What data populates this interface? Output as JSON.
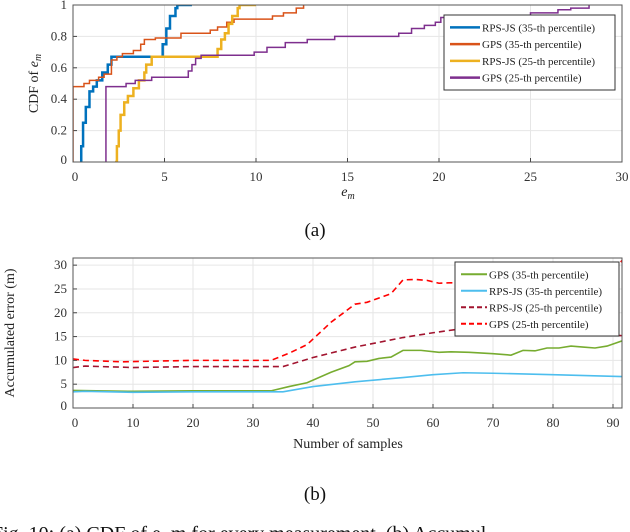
{
  "chart_data": [
    {
      "type": "line",
      "subtype": "step-cdf",
      "caption": "(a)",
      "xlabel": "e_m",
      "ylabel": "CDF of e_m",
      "xlim": [
        0,
        30
      ],
      "ylim": [
        0,
        1
      ],
      "xticks": [
        0,
        5,
        10,
        15,
        20,
        25,
        30
      ],
      "yticks": [
        0,
        0.2,
        0.4,
        0.6,
        0.8,
        1
      ],
      "ytick_labels": [
        "0",
        "0.2",
        "0.4",
        "0.6",
        "0.8",
        "1"
      ],
      "grid": true,
      "legend_position": "top-right",
      "series": [
        {
          "name": "RPS-JS (35-th percentile)",
          "color": "#0072BD",
          "width": 2.5,
          "points": [
            [
              0.4,
              0
            ],
            [
              0.45,
              0.1
            ],
            [
              0.55,
              0.25
            ],
            [
              0.7,
              0.35
            ],
            [
              0.9,
              0.45
            ],
            [
              1.1,
              0.48
            ],
            [
              1.3,
              0.52
            ],
            [
              1.6,
              0.57
            ],
            [
              1.9,
              0.62
            ],
            [
              2.1,
              0.67
            ],
            [
              4.65,
              0.67
            ],
            [
              4.9,
              0.75
            ],
            [
              5.1,
              0.85
            ],
            [
              5.3,
              0.93
            ],
            [
              5.6,
              0.98
            ],
            [
              5.7,
              1
            ],
            [
              6.5,
              1
            ]
          ]
        },
        {
          "name": "GPS (35-th percentile)",
          "color": "#D95319",
          "width": 1.5,
          "points": [
            [
              0,
              0
            ],
            [
              0,
              0.48
            ],
            [
              0.6,
              0.5
            ],
            [
              0.9,
              0.52
            ],
            [
              1.4,
              0.54
            ],
            [
              1.7,
              0.56
            ],
            [
              2.1,
              0.65
            ],
            [
              2.4,
              0.67
            ],
            [
              2.7,
              0.69
            ],
            [
              3.3,
              0.71
            ],
            [
              3.7,
              0.75
            ],
            [
              3.9,
              0.78
            ],
            [
              4.5,
              0.79
            ],
            [
              5.9,
              0.82
            ],
            [
              7.5,
              0.84
            ],
            [
              7.9,
              0.86
            ],
            [
              8.4,
              0.89
            ],
            [
              8.8,
              0.91
            ],
            [
              10.9,
              0.93
            ],
            [
              11.5,
              0.95
            ],
            [
              12.2,
              0.98
            ],
            [
              12.6,
              1
            ]
          ]
        },
        {
          "name": "RPS-JS (25-th percentile)",
          "color": "#EDB120",
          "width": 2.5,
          "points": [
            [
              2.3,
              0
            ],
            [
              2.4,
              0.1
            ],
            [
              2.5,
              0.2
            ],
            [
              2.6,
              0.3
            ],
            [
              2.8,
              0.38
            ],
            [
              3.0,
              0.42
            ],
            [
              3.3,
              0.47
            ],
            [
              3.6,
              0.52
            ],
            [
              3.9,
              0.57
            ],
            [
              4.0,
              0.62
            ],
            [
              4.3,
              0.67
            ],
            [
              7.8,
              0.67
            ],
            [
              7.9,
              0.72
            ],
            [
              8.1,
              0.78
            ],
            [
              8.3,
              0.82
            ],
            [
              8.5,
              0.88
            ],
            [
              8.7,
              0.93
            ],
            [
              9.0,
              0.98
            ],
            [
              9.1,
              1
            ],
            [
              10,
              1
            ]
          ]
        },
        {
          "name": "GPS (25-th percentile)",
          "color": "#7E2F8E",
          "width": 1.5,
          "points": [
            [
              1.8,
              0
            ],
            [
              1.8,
              0.48
            ],
            [
              2.9,
              0.5
            ],
            [
              3.4,
              0.52
            ],
            [
              4.3,
              0.54
            ],
            [
              6.3,
              0.58
            ],
            [
              6.5,
              0.62
            ],
            [
              6.7,
              0.66
            ],
            [
              7.0,
              0.68
            ],
            [
              9.9,
              0.7
            ],
            [
              10.6,
              0.73
            ],
            [
              11.6,
              0.76
            ],
            [
              12.8,
              0.78
            ],
            [
              14.3,
              0.8
            ],
            [
              17.8,
              0.82
            ],
            [
              18.5,
              0.85
            ],
            [
              19.2,
              0.87
            ],
            [
              19.8,
              0.89
            ],
            [
              20.1,
              0.92
            ],
            [
              25,
              0.95
            ],
            [
              26.5,
              0.97
            ],
            [
              27.2,
              0.98
            ],
            [
              28.2,
              1
            ]
          ]
        }
      ]
    },
    {
      "type": "line",
      "caption": "(b)",
      "xlabel": "Number of samples",
      "ylabel": "Accumulated error (m)",
      "xlim": [
        0,
        91.5
      ],
      "ylim": [
        0,
        31.5
      ],
      "xticks": [
        0,
        10,
        20,
        30,
        40,
        50,
        60,
        70,
        80,
        90
      ],
      "yticks": [
        0,
        5,
        10,
        15,
        20,
        25,
        30
      ],
      "grid": true,
      "legend_position": "top-right",
      "series": [
        {
          "name": "GPS (35-th percentile)",
          "color": "#77AC30",
          "dash": "solid",
          "points": [
            [
              0,
              3.7
            ],
            [
              10,
              3.5
            ],
            [
              20,
              3.6
            ],
            [
              33,
              3.6
            ],
            [
              36,
              4.5
            ],
            [
              39,
              5.3
            ],
            [
              43,
              7.5
            ],
            [
              46,
              8.9
            ],
            [
              47,
              9.7
            ],
            [
              49,
              9.8
            ],
            [
              51,
              10.4
            ],
            [
              53,
              10.7
            ],
            [
              55,
              12.1
            ],
            [
              58,
              12.1
            ],
            [
              61,
              11.7
            ],
            [
              63,
              11.8
            ],
            [
              66,
              11.7
            ],
            [
              70,
              11.4
            ],
            [
              73,
              11.1
            ],
            [
              75,
              12.1
            ],
            [
              77,
              12.0
            ],
            [
              79,
              12.6
            ],
            [
              81,
              12.6
            ],
            [
              83,
              13.0
            ],
            [
              85,
              12.8
            ],
            [
              87,
              12.6
            ],
            [
              89,
              13.0
            ],
            [
              91.5,
              14.1
            ]
          ]
        },
        {
          "name": "RPS-JS (35-th percentile)",
          "color": "#4DBEEE",
          "dash": "solid",
          "points": [
            [
              0,
              3.4
            ],
            [
              2,
              3.5
            ],
            [
              10,
              3.3
            ],
            [
              20,
              3.4
            ],
            [
              35,
              3.4
            ],
            [
              40,
              4.5
            ],
            [
              47,
              5.5
            ],
            [
              55,
              6.4
            ],
            [
              60,
              7.0
            ],
            [
              65,
              7.4
            ],
            [
              70,
              7.3
            ],
            [
              80,
              7.0
            ],
            [
              91.5,
              6.6
            ]
          ]
        },
        {
          "name": "RPS-JS (25-th percentile)",
          "color": "#A2142F",
          "dash": "dashed",
          "points": [
            [
              0,
              8.5
            ],
            [
              2,
              8.8
            ],
            [
              10,
              8.5
            ],
            [
              20,
              8.7
            ],
            [
              35,
              8.7
            ],
            [
              40,
              10.6
            ],
            [
              47,
              12.8
            ],
            [
              55,
              14.8
            ],
            [
              60,
              15.8
            ],
            [
              65,
              16.7
            ],
            [
              70,
              16.6
            ],
            [
              80,
              16.0
            ],
            [
              91.5,
              15.2
            ]
          ]
        },
        {
          "name": "GPS (25-th percentile)",
          "color": "#FF0000",
          "dash": "dashed",
          "points": [
            [
              0,
              10.3
            ],
            [
              2,
              10.0
            ],
            [
              8,
              9.7
            ],
            [
              20,
              10.0
            ],
            [
              33,
              10.0
            ],
            [
              36,
              11.5
            ],
            [
              39,
              13.3
            ],
            [
              43,
              18
            ],
            [
              47,
              21.8
            ],
            [
              49,
              22.2
            ],
            [
              53,
              24
            ],
            [
              55,
              26.9
            ],
            [
              57,
              27.0
            ],
            [
              59,
              26.8
            ],
            [
              61,
              26.2
            ],
            [
              63,
              26.3
            ],
            [
              66,
              26.1
            ],
            [
              75,
              26.6
            ],
            [
              85,
              27.5
            ],
            [
              90,
              28.5
            ],
            [
              91.5,
              31
            ]
          ]
        }
      ]
    }
  ],
  "figure_caption": "Fig. 10: (a) CDF of e_m for every measurement. (b) Accumul"
}
